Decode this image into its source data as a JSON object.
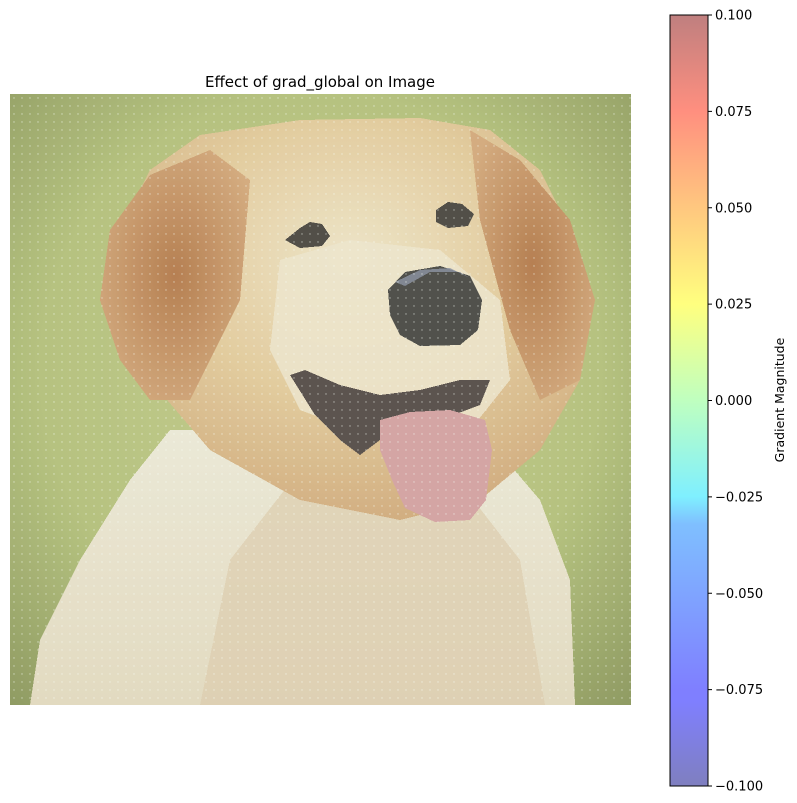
{
  "chart_data": [
    {
      "type": "image",
      "title": "Effect of grad_global on Image",
      "subject": "pixelated photo of a golden retriever dog",
      "axes": "off"
    },
    {
      "type": "colorbar",
      "label": "Gradient Magnitude",
      "colormap": "jet",
      "alpha": 0.5,
      "range": [
        -0.1,
        0.1
      ],
      "ticks": [
        -0.1,
        -0.075,
        -0.05,
        -0.025,
        0.0,
        0.025,
        0.05,
        0.075,
        0.1
      ],
      "tick_labels": [
        "−0.100",
        "−0.075",
        "−0.050",
        "−0.025",
        "0.000",
        "0.025",
        "0.050",
        "0.075",
        "0.100"
      ]
    }
  ]
}
